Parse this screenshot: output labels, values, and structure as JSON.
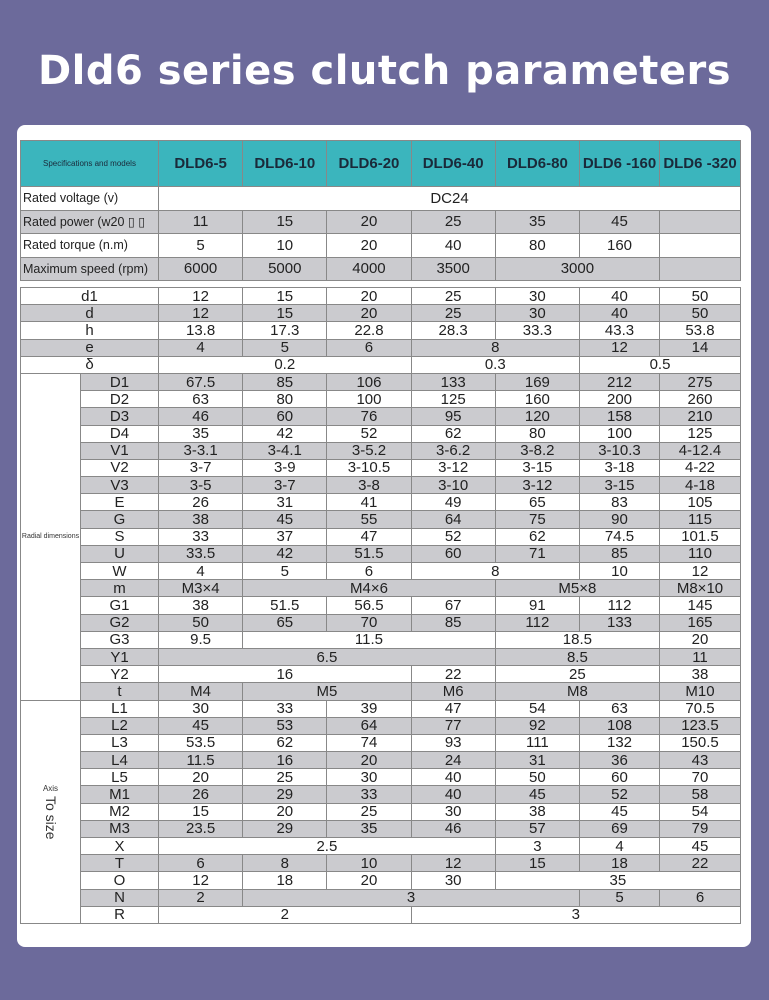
{
  "title": "Dld6 series clutch parameters",
  "header": {
    "spec_label": "Specifications and models",
    "models": [
      "DLD6-5",
      "DLD6-10",
      "DLD6-20",
      "DLD6-40",
      "DLD6-80",
      "DLD6 -160",
      "DLD6 -320"
    ]
  },
  "electrical": [
    {
      "label": "Rated voltage (v)",
      "cells": [
        [
          "DC24",
          7
        ]
      ]
    },
    {
      "label": "Rated power (w20 ▯ ▯",
      "cells": [
        "11",
        "15",
        "20",
        "25",
        "35",
        "45",
        ""
      ]
    },
    {
      "label": "Rated torque (n.m)",
      "cells": [
        "5",
        "10",
        "20",
        "40",
        "80",
        "160",
        ""
      ]
    },
    {
      "label": "Maximum speed (rpm)",
      "cells": [
        "6000",
        "5000",
        "4000",
        "3500",
        [
          "3000",
          2
        ],
        ""
      ]
    }
  ],
  "groups": {
    "radial": "Radial dimensions",
    "axis_small": "Axis",
    "axis_big": "To size"
  },
  "general": [
    {
      "label": "d1",
      "cells": [
        "12",
        "15",
        "20",
        "25",
        "30",
        "40",
        "50"
      ]
    },
    {
      "label": "d",
      "cells": [
        "12",
        "15",
        "20",
        "25",
        "30",
        "40",
        "50"
      ]
    },
    {
      "label": "h",
      "cells": [
        "13.8",
        "17.3",
        "22.8",
        "28.3",
        "33.3",
        "43.3",
        "53.8"
      ]
    },
    {
      "label": "e",
      "cells": [
        "4",
        "5",
        "6",
        [
          "8",
          2
        ],
        "12",
        "14"
      ]
    },
    {
      "label": "δ",
      "cells": [
        [
          "0.2",
          3
        ],
        [
          "0.3",
          2
        ],
        [
          "0.5",
          2
        ]
      ]
    }
  ],
  "radial": [
    {
      "label": "D1",
      "cells": [
        "67.5",
        "85",
        "106",
        "133",
        "169",
        "212",
        "275"
      ]
    },
    {
      "label": "D2",
      "cells": [
        "63",
        "80",
        "100",
        "125",
        "160",
        "200",
        "260"
      ]
    },
    {
      "label": "D3",
      "cells": [
        "46",
        "60",
        "76",
        "95",
        "120",
        "158",
        "210"
      ]
    },
    {
      "label": "D4",
      "cells": [
        "35",
        "42",
        "52",
        "62",
        "80",
        "100",
        "125"
      ]
    },
    {
      "label": "V1",
      "cells": [
        "3-3.1",
        "3-4.1",
        "3-5.2",
        "3-6.2",
        "3-8.2",
        "3-10.3",
        "4-12.4"
      ]
    },
    {
      "label": "V2",
      "cells": [
        "3-7",
        "3-9",
        "3-10.5",
        "3-12",
        "3-15",
        "3-18",
        "4-22"
      ]
    },
    {
      "label": "V3",
      "cells": [
        "3-5",
        "3-7",
        "3-8",
        "3-10",
        "3-12",
        "3-15",
        "4-18"
      ]
    },
    {
      "label": "E",
      "cells": [
        "26",
        "31",
        "41",
        "49",
        "65",
        "83",
        "105"
      ]
    },
    {
      "label": "G",
      "cells": [
        "38",
        "45",
        "55",
        "64",
        "75",
        "90",
        "115"
      ]
    },
    {
      "label": "S",
      "cells": [
        "33",
        "37",
        "47",
        "52",
        "62",
        "74.5",
        "101.5"
      ]
    },
    {
      "label": "U",
      "cells": [
        "33.5",
        "42",
        "51.5",
        "60",
        "71",
        "85",
        "110"
      ]
    },
    {
      "label": "W",
      "cells": [
        "4",
        "5",
        "6",
        [
          "8",
          2
        ],
        "10",
        "12"
      ]
    },
    {
      "label": "m",
      "cells": [
        "M3×4",
        [
          "M4×6",
          3
        ],
        [
          "M5×8",
          2
        ],
        "M8×10"
      ]
    },
    {
      "label": "G1",
      "cells": [
        "38",
        "51.5",
        "56.5",
        "67",
        "91",
        "112",
        "145"
      ]
    },
    {
      "label": "G2",
      "cells": [
        "50",
        "65",
        "70",
        "85",
        "112",
        "133",
        "165"
      ]
    },
    {
      "label": "G3",
      "cells": [
        "9.5",
        [
          "11.5",
          3
        ],
        [
          "18.5",
          2
        ],
        "20"
      ]
    },
    {
      "label": "Y1",
      "cells": [
        [
          "6.5",
          4
        ],
        [
          "8.5",
          2
        ],
        "11"
      ]
    },
    {
      "label": "Y2",
      "cells": [
        [
          "16",
          3
        ],
        "22",
        [
          "25",
          2
        ],
        "38"
      ]
    },
    {
      "label": "t",
      "cells": [
        "M4",
        [
          "M5",
          2
        ],
        "M6",
        [
          "M8",
          2
        ],
        "M10"
      ]
    }
  ],
  "axial": [
    {
      "label": "L1",
      "cells": [
        "30",
        "33",
        "39",
        "47",
        "54",
        "63",
        "70.5"
      ]
    },
    {
      "label": "L2",
      "cells": [
        "45",
        "53",
        "64",
        "77",
        "92",
        "108",
        "123.5"
      ]
    },
    {
      "label": "L3",
      "cells": [
        "53.5",
        "62",
        "74",
        "93",
        "111",
        "132",
        "150.5"
      ]
    },
    {
      "label": "L4",
      "cells": [
        "11.5",
        "16",
        "20",
        "24",
        "31",
        "36",
        "43"
      ]
    },
    {
      "label": "L5",
      "cells": [
        "20",
        "25",
        "30",
        "40",
        "50",
        "60",
        "70"
      ]
    },
    {
      "label": "M1",
      "cells": [
        "26",
        "29",
        "33",
        "40",
        "45",
        "52",
        "58"
      ]
    },
    {
      "label": "M2",
      "cells": [
        "15",
        "20",
        "25",
        "30",
        "38",
        "45",
        "54"
      ]
    },
    {
      "label": "M3",
      "cells": [
        "23.5",
        "29",
        "35",
        "46",
        "57",
        "69",
        "79"
      ]
    },
    {
      "label": "X",
      "cells": [
        [
          "2.5",
          4
        ],
        "3",
        "4",
        "45"
      ]
    },
    {
      "label": "T",
      "cells": [
        "6",
        "8",
        "10",
        "12",
        "15",
        "18",
        "22"
      ]
    },
    {
      "label": "O",
      "cells": [
        "12",
        "18",
        "20",
        "30",
        [
          "35",
          3
        ]
      ]
    },
    {
      "label": "N",
      "cells": [
        "2",
        [
          "3",
          4
        ],
        "5",
        "6"
      ]
    },
    {
      "label": "R",
      "cells": [
        [
          "2",
          3
        ],
        [
          "3",
          4
        ]
      ]
    }
  ],
  "colors": {
    "background": "#6c6a9b",
    "header": "#3bb5bd",
    "stripe": "#cbcbcf"
  }
}
